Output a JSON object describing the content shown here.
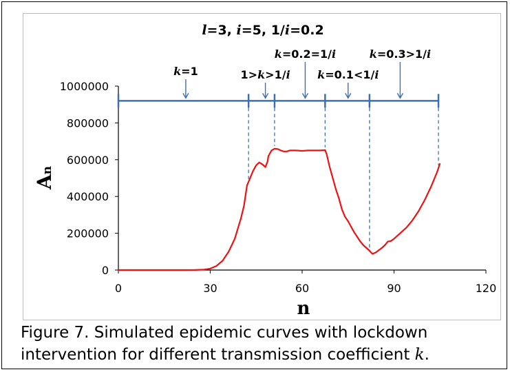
{
  "chart_data": {
    "type": "line",
    "title": "l=3, i=5, 1/i=0.2",
    "title_parts": [
      "l",
      "=3, ",
      "i",
      "=5, 1/",
      "i",
      "=0.2"
    ],
    "xlabel": "n",
    "ylabel": "A",
    "ylabel_sub": "n",
    "xlim": [
      0,
      120
    ],
    "ylim": [
      0,
      1000000
    ],
    "xticks": [
      "0",
      "30",
      "60",
      "90",
      "120"
    ],
    "yticks": [
      "0",
      "200000",
      "400000",
      "600000",
      "800000",
      "1000000"
    ],
    "grid": false,
    "legend": "none",
    "series_color": "#ee1111",
    "timeline_color": "#3a6fb5",
    "series": [
      {
        "x": [
          0,
          5,
          10,
          15,
          20,
          25,
          28,
          30,
          32,
          34,
          36,
          38,
          40,
          41,
          42,
          43,
          44,
          45,
          46,
          47,
          48,
          48.7,
          49,
          50,
          51,
          52,
          53,
          54,
          55,
          56,
          58,
          60,
          62,
          64,
          66,
          67.5,
          68,
          69,
          70,
          71,
          72,
          73,
          74,
          75,
          76,
          77,
          78,
          79,
          80,
          81,
          82,
          82.5,
          83,
          84,
          85,
          86,
          87,
          88,
          89,
          90,
          92,
          94,
          96,
          98,
          100,
          102,
          104,
          105
        ],
        "y": [
          0,
          0,
          0,
          0,
          0,
          500,
          2500,
          8000,
          22000,
          50000,
          100000,
          170000,
          280000,
          350000,
          460000,
          500000,
          540000,
          570000,
          585000,
          575000,
          560000,
          590000,
          620000,
          650000,
          660000,
          658000,
          650000,
          645000,
          645000,
          650000,
          650000,
          648000,
          650000,
          650000,
          650000,
          652000,
          630000,
          560000,
          500000,
          440000,
          390000,
          330000,
          290000,
          265000,
          235000,
          205000,
          180000,
          155000,
          135000,
          120000,
          105000,
          95000,
          88000,
          95000,
          108000,
          120000,
          135000,
          155000,
          158000,
          170000,
          200000,
          230000,
          270000,
          320000,
          380000,
          450000,
          530000,
          580000
        ]
      }
    ],
    "lockdown_line_y": 920000,
    "phase_boundaries": [
      0,
      42.5,
      51,
      67.5,
      82,
      104.5
    ],
    "phase_labels": [
      {
        "parts": [
          "k",
          "=1"
        ],
        "x": 22
      },
      {
        "parts": [
          "1>",
          "k",
          ">1/",
          "i"
        ],
        "x": 48
      },
      {
        "parts": [
          "k",
          "=0.2=1/",
          "i"
        ],
        "x": 61
      },
      {
        "parts": [
          "k",
          "=0.1<1/",
          "i"
        ],
        "x": 75
      },
      {
        "parts": [
          "k",
          "=0.3>1/",
          "i"
        ],
        "x": 92
      }
    ]
  },
  "caption": {
    "line1": "Figure 7. Simulated epidemic curves with lockdown",
    "line2_text": "intervention for different transmission coefficient ",
    "line2_k": "k",
    "line2_end": "."
  }
}
